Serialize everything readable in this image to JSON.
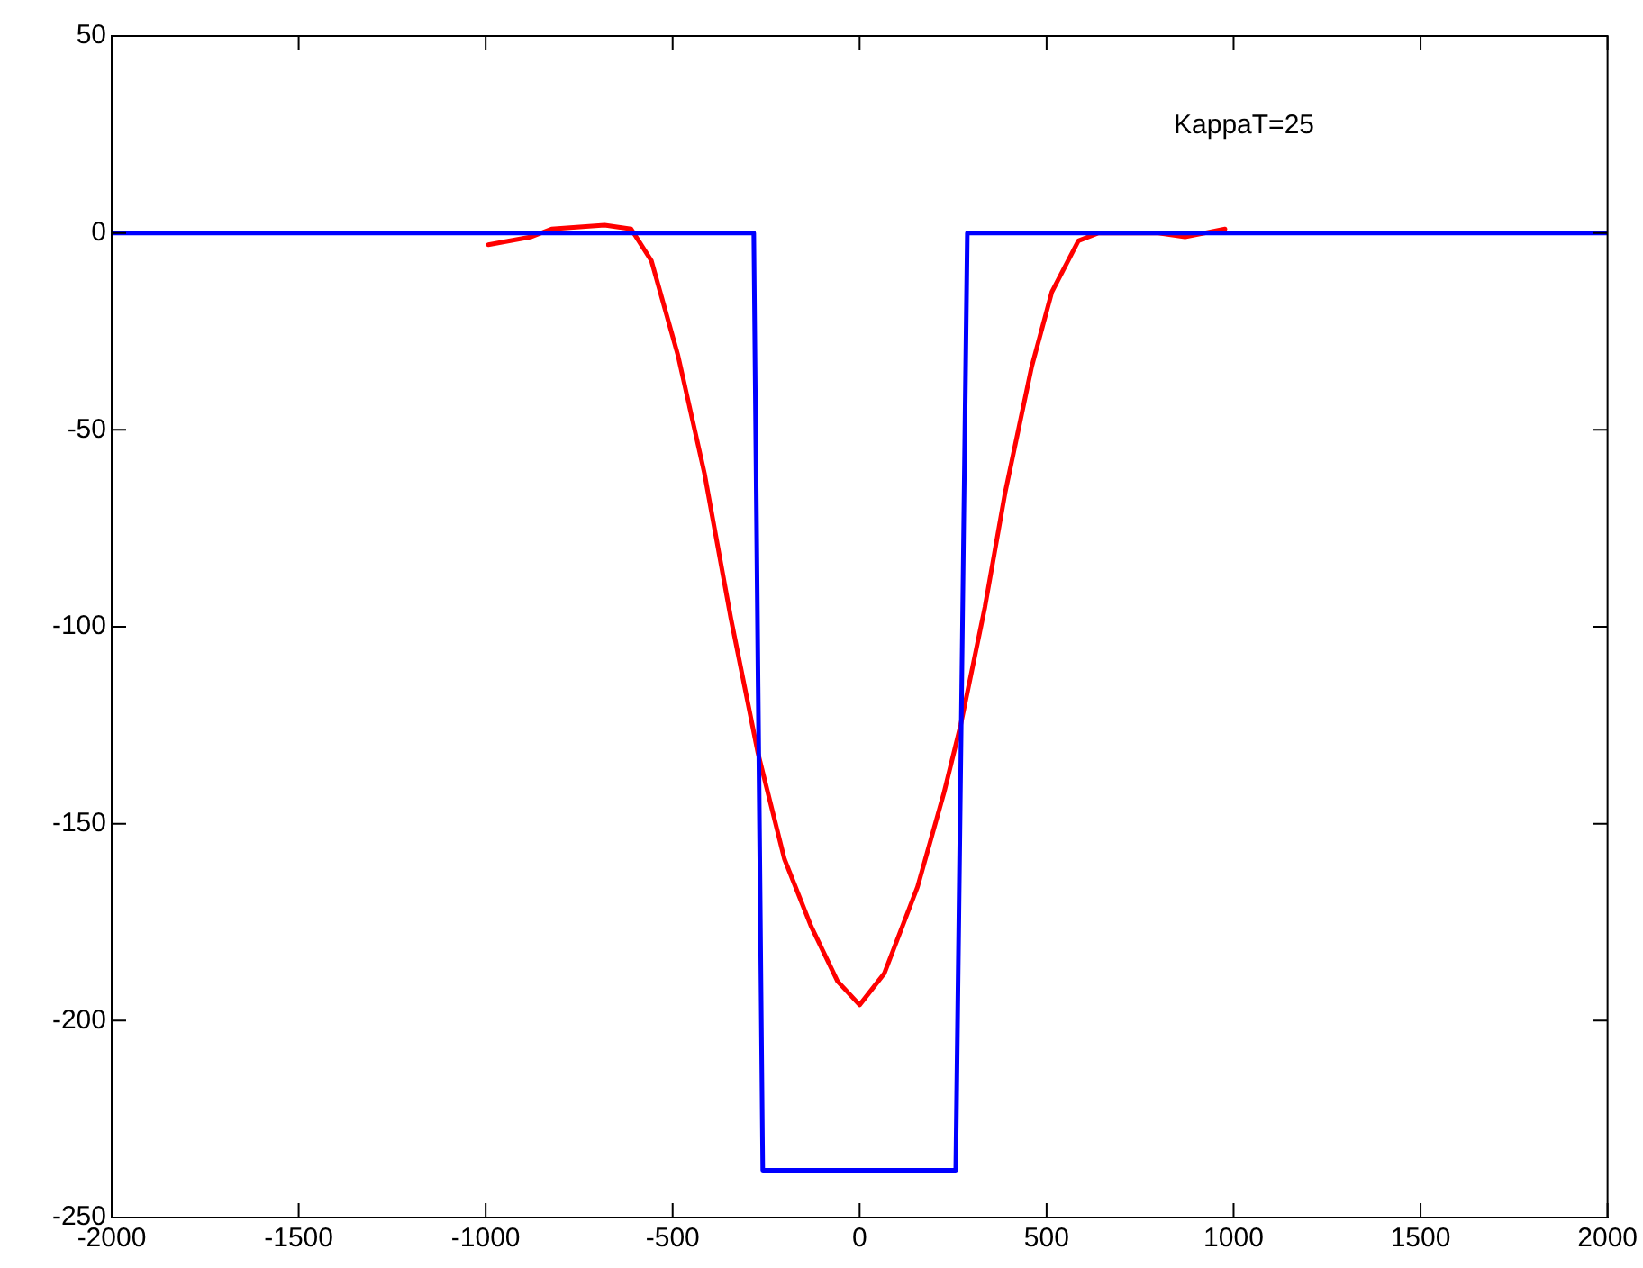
{
  "chart_data": {
    "type": "line",
    "xlim": [
      -2000,
      2000
    ],
    "xticks": [
      -2000,
      -1500,
      -1000,
      -500,
      0,
      500,
      1000,
      1500,
      2000
    ],
    "ylim": [
      -250,
      50
    ],
    "yticks": [
      -250,
      -200,
      -150,
      -100,
      -50,
      0,
      50
    ],
    "grid": false,
    "legend": false,
    "marker": "none",
    "line_style": "solid",
    "annotations": [
      "KappaT=25"
    ],
    "series": [
      {
        "color": "#0000ff",
        "x": [
          -2000,
          -283,
          -259,
          257,
          288,
          2000
        ],
        "values": [
          0,
          0,
          -238,
          -238,
          0,
          0
        ]
      },
      {
        "color": "#ff0000",
        "x": [
          -993,
          -878,
          -824,
          -682,
          -611,
          -557,
          -486,
          -415,
          -344,
          -272,
          -201,
          -130,
          -59,
          0,
          66,
          155,
          226,
          270,
          335,
          389,
          460,
          514,
          585,
          639,
          799,
          870,
          977
        ],
        "values": [
          -3,
          -1,
          1,
          2,
          1,
          -7,
          -31,
          -61,
          -98,
          -132,
          -159,
          -176,
          -190,
          -196,
          -188,
          -166,
          -142,
          -125,
          -95,
          -66,
          -34,
          -15,
          -2,
          0,
          0,
          -1,
          1
        ]
      }
    ]
  }
}
